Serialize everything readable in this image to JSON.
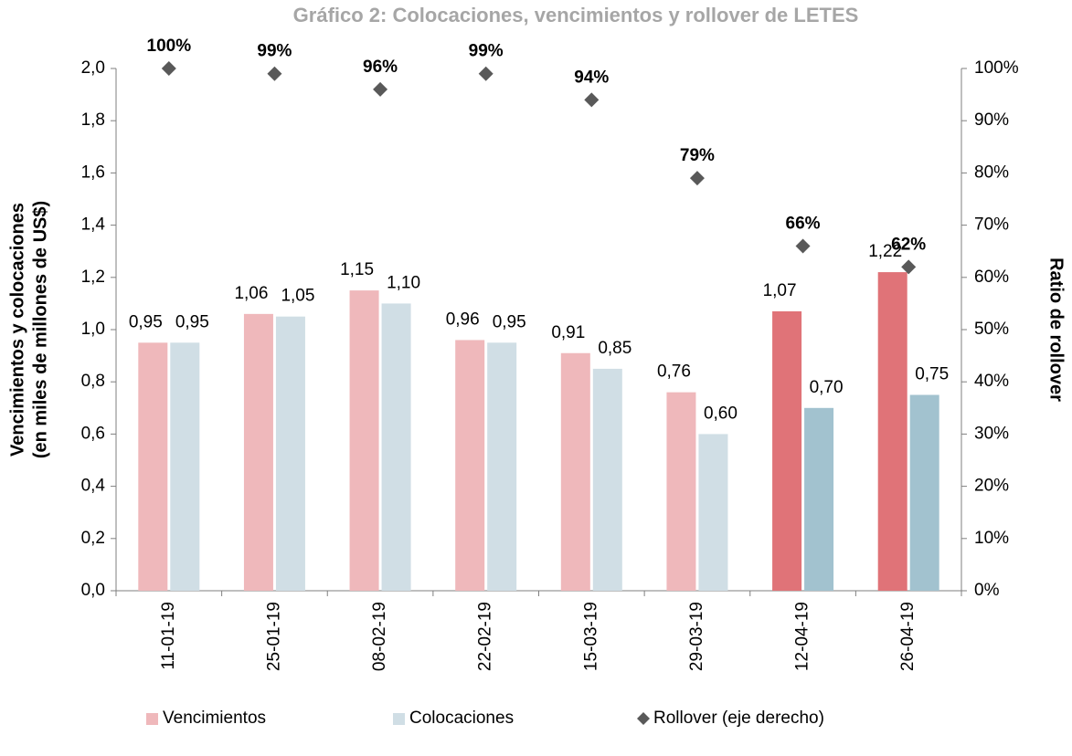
{
  "chart_data": {
    "type": "bar",
    "title": "Gráfico 2: Colocaciones, vencimientos y rollover de LETES",
    "ylabel": [
      "Vencimientos y colocaciones",
      "(en miles de millones de US$)"
    ],
    "y2label": "Ratio de rollover",
    "categories": [
      "11-01-19",
      "25-01-19",
      "08-02-19",
      "22-02-19",
      "15-03-19",
      "29-03-19",
      "12-04-19",
      "26-04-19"
    ],
    "series": [
      {
        "name": "Vencimientos",
        "color": "#efb8bb",
        "colors": [
          "#efb8bb",
          "#efb8bb",
          "#efb8bb",
          "#efb8bb",
          "#efb8bb",
          "#efb8bb",
          "#e07378",
          "#e07378"
        ],
        "values": [
          0.95,
          1.06,
          1.15,
          0.96,
          0.91,
          0.76,
          1.07,
          1.22
        ],
        "value_labels": [
          "0,95",
          "1,06",
          "1,15",
          "0,96",
          "0,91",
          "0,76",
          "1,07",
          "1,22"
        ]
      },
      {
        "name": "Colocaciones",
        "color": "#d0dee5",
        "colors": [
          "#d0dee5",
          "#d0dee5",
          "#d0dee5",
          "#d0dee5",
          "#d0dee5",
          "#d0dee5",
          "#a2c2cf",
          "#a2c2cf"
        ],
        "values": [
          0.95,
          1.05,
          1.1,
          0.95,
          0.85,
          0.6,
          0.7,
          0.75
        ],
        "value_labels": [
          "0,95",
          "1,05",
          "1,10",
          "0,95",
          "0,85",
          "0,60",
          "0,70",
          "0,75"
        ]
      },
      {
        "name": "Rollover (eje derecho)",
        "color": "#595959",
        "type": "scatter",
        "axis": "y2",
        "values": [
          100,
          99,
          96,
          99,
          94,
          79,
          66,
          62
        ],
        "value_labels": [
          "100%",
          "99%",
          "96%",
          "99%",
          "94%",
          "79%",
          "66%",
          "62%"
        ]
      }
    ],
    "ylim": [
      0,
      2
    ],
    "yticks": [
      {
        "value": 0,
        "label": "0,0"
      },
      {
        "value": 0.2,
        "label": "0,2"
      },
      {
        "value": 0.4,
        "label": "0,4"
      },
      {
        "value": 0.6,
        "label": "0,6"
      },
      {
        "value": 0.8,
        "label": "0,8"
      },
      {
        "value": 1.0,
        "label": "1,0"
      },
      {
        "value": 1.2,
        "label": "1,2"
      },
      {
        "value": 1.4,
        "label": "1,4"
      },
      {
        "value": 1.6,
        "label": "1,6"
      },
      {
        "value": 1.8,
        "label": "1,8"
      },
      {
        "value": 2.0,
        "label": "2,0"
      }
    ],
    "y2lim": [
      0,
      100
    ],
    "y2ticks": [
      {
        "value": 0,
        "label": "0%"
      },
      {
        "value": 10,
        "label": "10%"
      },
      {
        "value": 20,
        "label": "20%"
      },
      {
        "value": 30,
        "label": "30%"
      },
      {
        "value": 40,
        "label": "40%"
      },
      {
        "value": 50,
        "label": "50%"
      },
      {
        "value": 60,
        "label": "60%"
      },
      {
        "value": 70,
        "label": "70%"
      },
      {
        "value": 80,
        "label": "80%"
      },
      {
        "value": 90,
        "label": "90%"
      },
      {
        "value": 100,
        "label": "100%"
      }
    ],
    "grid": false,
    "legend": "bottom"
  }
}
